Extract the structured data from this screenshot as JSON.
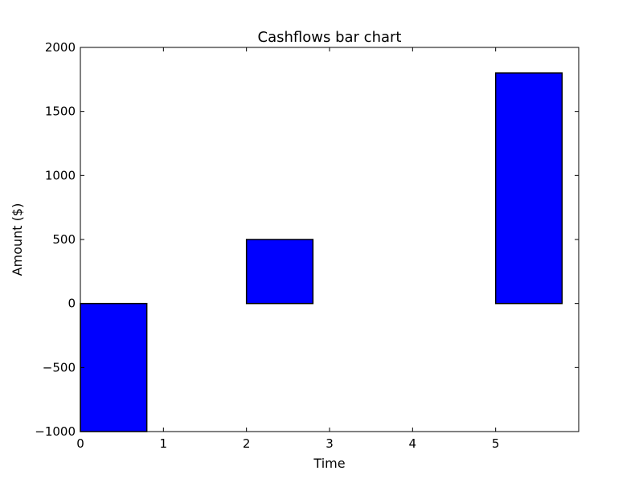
{
  "chart_data": {
    "type": "bar",
    "title": "Cashflows bar chart",
    "xlabel": "Time",
    "ylabel": "Amount ($)",
    "categories": [
      "0",
      "1",
      "2",
      "3",
      "4",
      "5"
    ],
    "x": [
      0,
      1,
      2,
      3,
      4,
      5
    ],
    "values": [
      -1000,
      0,
      500,
      0,
      0,
      1800
    ],
    "bar_width": 0.8,
    "xlim": [
      0,
      6
    ],
    "ylim": [
      -1000,
      2000
    ],
    "xticks": [
      0,
      1,
      2,
      3,
      4,
      5
    ],
    "xtick_labels": [
      "0",
      "1",
      "2",
      "3",
      "4",
      "5"
    ],
    "yticks": [
      -1000,
      -500,
      0,
      500,
      1000,
      1500,
      2000
    ],
    "ytick_labels": [
      "−1000",
      "−500",
      "0",
      "500",
      "1000",
      "1500",
      "2000"
    ],
    "grid": false,
    "legend": "none",
    "colors": {
      "bar_fill": "#0000ff",
      "bar_edge": "#000000",
      "axes": "#000000",
      "background": "#ffffff"
    }
  }
}
